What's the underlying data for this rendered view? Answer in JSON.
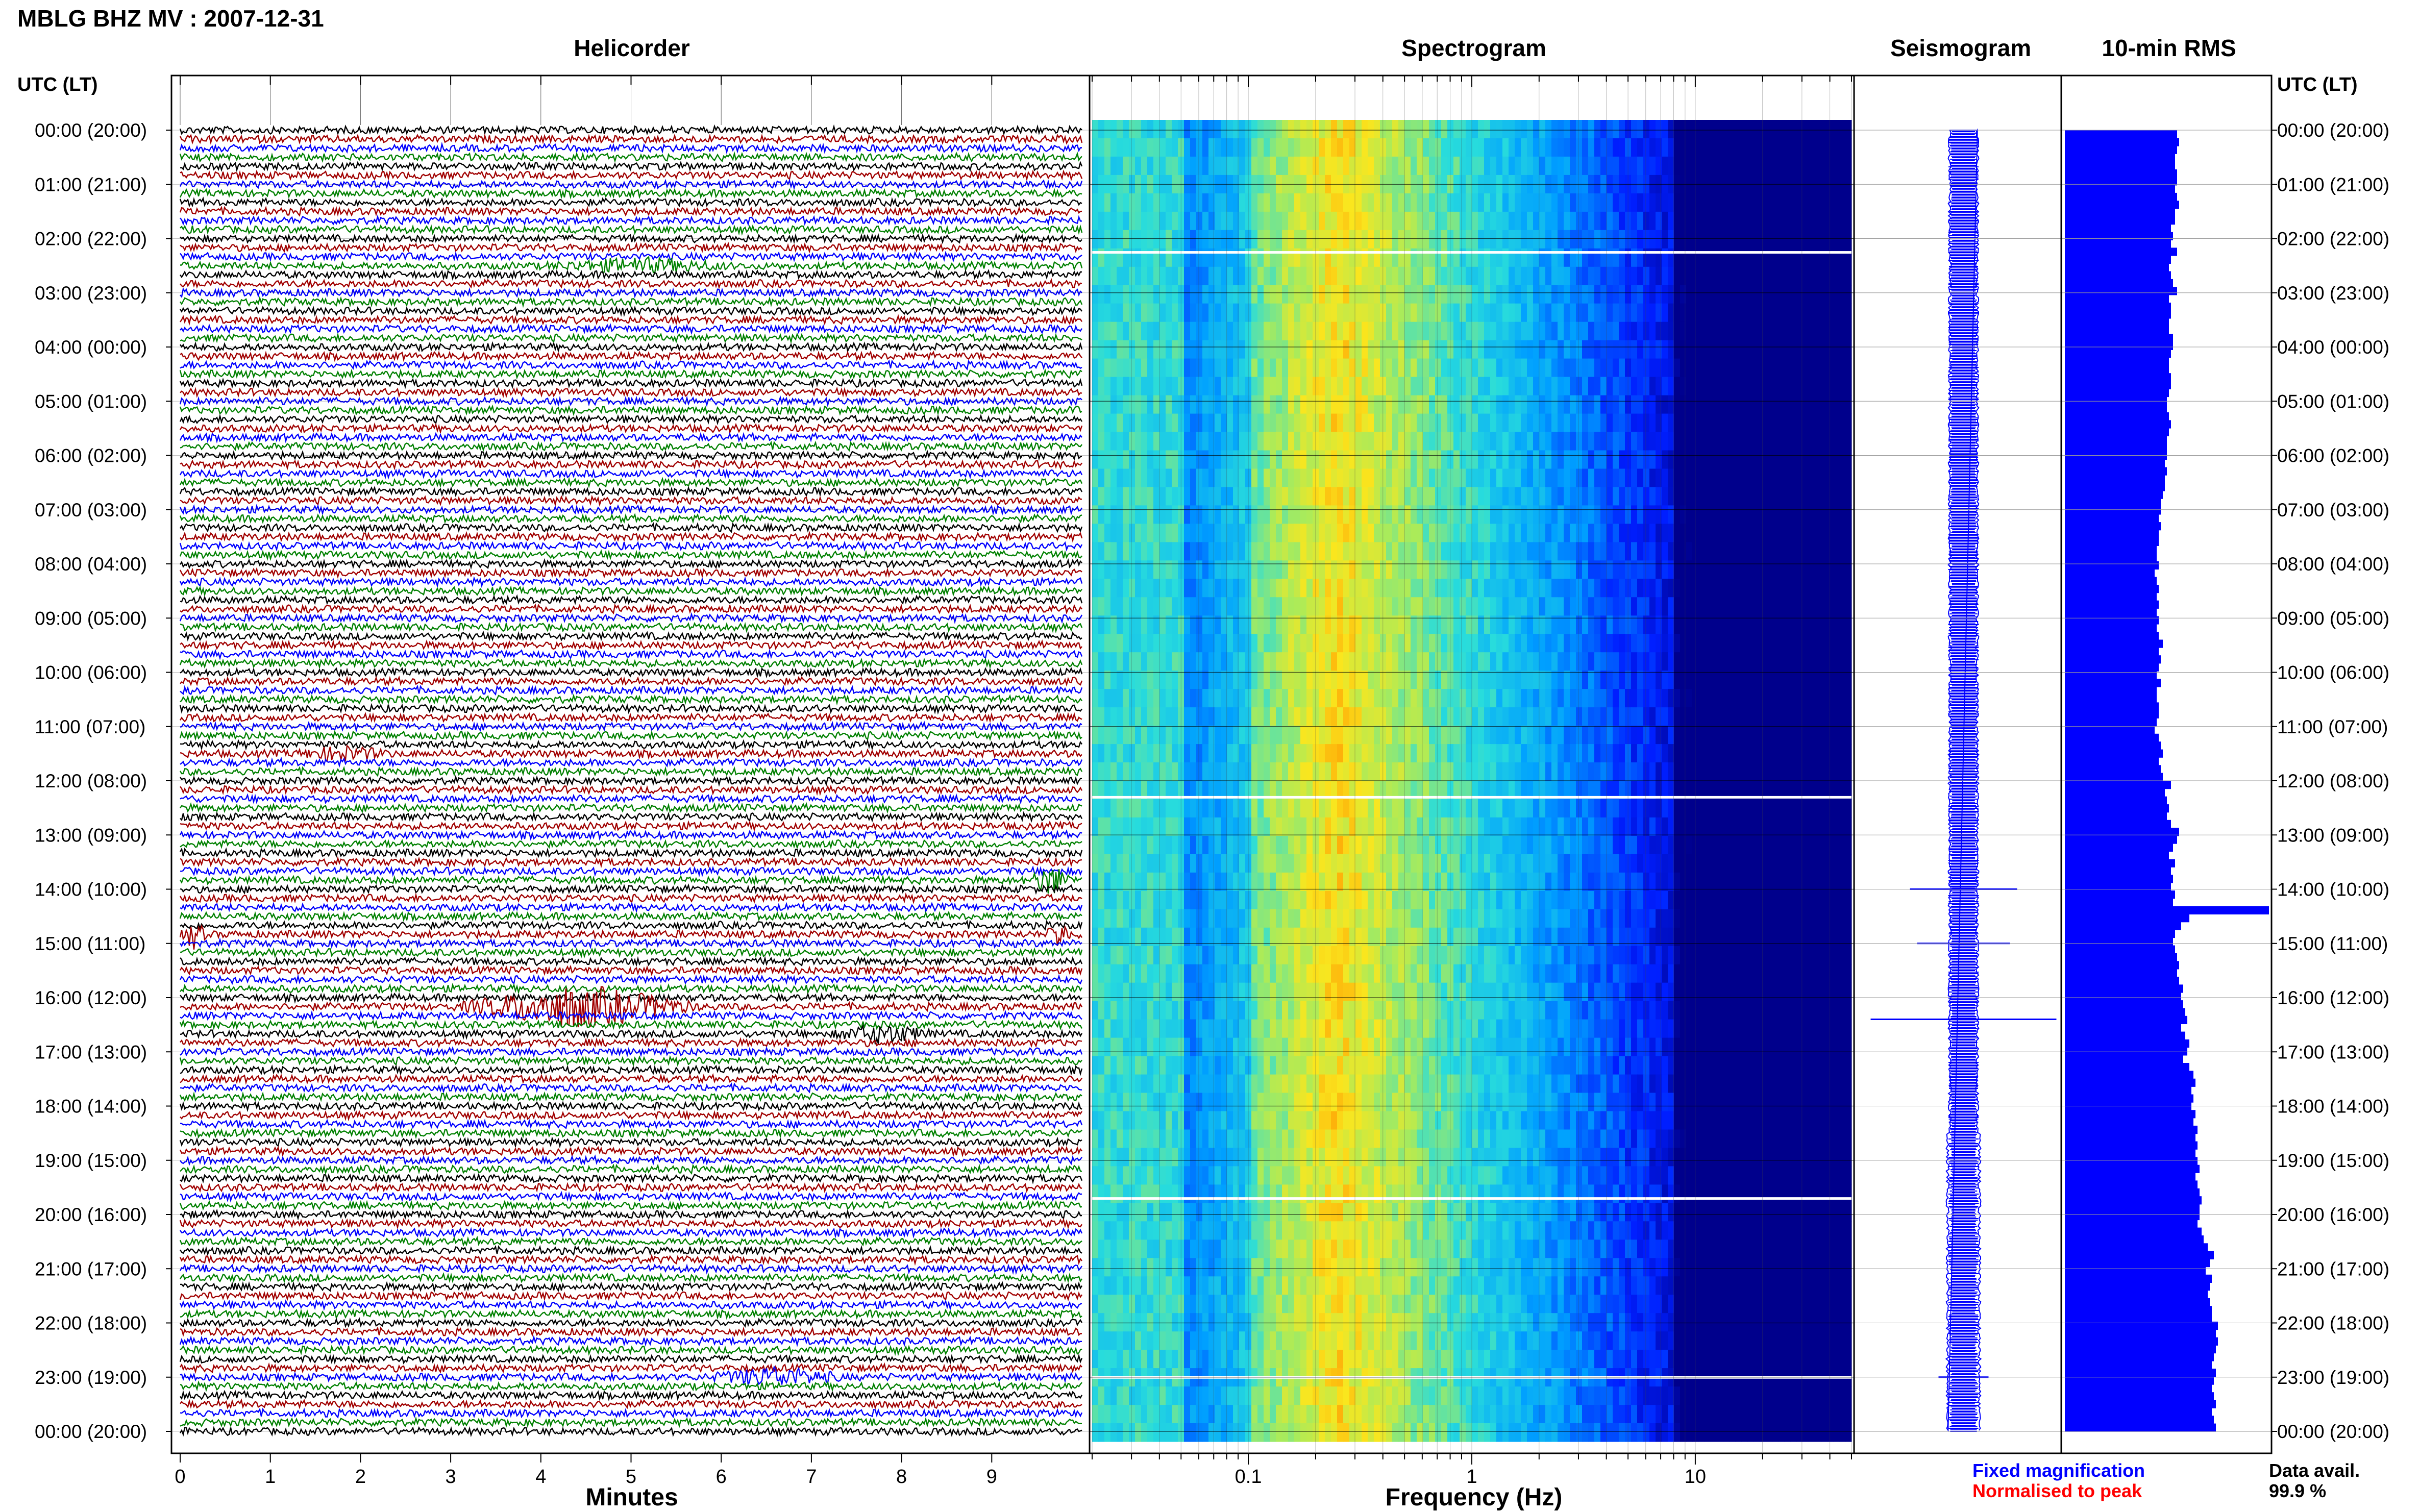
{
  "header": {
    "title": "MBLG BHZ MV : 2007-12-31"
  },
  "panels": {
    "helicorder": "Helicorder",
    "spectrogram": "Spectrogram",
    "seismogram": "Seismogram",
    "rms": "10-min RMS"
  },
  "axes": {
    "time_header_left": "UTC (LT)",
    "time_header_right": "UTC (LT)",
    "helicorder_xlabel": "Minutes",
    "spectrogram_xlabel": "Frequency (Hz)"
  },
  "legend": {
    "fixed": "Fixed magnification",
    "normalised": "Normalised to peak",
    "fixed_color": "#0000ff",
    "normalised_color": "#ff0000"
  },
  "availability": {
    "label": "Data avail.",
    "value": "99.9 %"
  },
  "chart_data": {
    "type": "heatmap",
    "time_labels": [
      "00:00 (20:00)",
      "01:00 (21:00)",
      "02:00 (22:00)",
      "03:00 (23:00)",
      "04:00 (00:00)",
      "05:00 (01:00)",
      "06:00 (02:00)",
      "07:00 (03:00)",
      "08:00 (04:00)",
      "09:00 (05:00)",
      "10:00 (06:00)",
      "11:00 (07:00)",
      "12:00 (08:00)",
      "13:00 (09:00)",
      "14:00 (10:00)",
      "15:00 (11:00)",
      "16:00 (12:00)",
      "17:00 (13:00)",
      "18:00 (14:00)",
      "19:00 (15:00)",
      "20:00 (16:00)",
      "21:00 (17:00)",
      "22:00 (18:00)",
      "23:00 (19:00)",
      "00:00 (20:00)"
    ],
    "helicorder": {
      "x_ticks": [
        0,
        1,
        2,
        3,
        4,
        5,
        6,
        7,
        8,
        9
      ],
      "xlim": [
        0,
        10
      ],
      "trace_colors": [
        "#000000",
        "#a00000",
        "#0000ff",
        "#008000"
      ],
      "traces_per_hour": 6,
      "events": [
        {
          "hour": 2.5,
          "minute_start": 4.0,
          "minute_end": 6.2,
          "color": "#000000",
          "amp": 0.6
        },
        {
          "hour": 11.5,
          "minute_start": 1.2,
          "minute_end": 2.4,
          "color": "#000000",
          "amp": 0.6
        },
        {
          "hour": 13.9,
          "minute_start": 9.4,
          "minute_end": 9.9,
          "color": "#008000",
          "amp": 1.6
        },
        {
          "hour": 14.8,
          "minute_start": 0.0,
          "minute_end": 0.3,
          "color": "#0000ff",
          "amp": 1.4
        },
        {
          "hour": 14.8,
          "minute_start": 9.6,
          "minute_end": 9.9,
          "color": "#a00000",
          "amp": 1.4
        },
        {
          "hour": 16.2,
          "minute_start": 3.0,
          "minute_end": 5.8,
          "color": "#0000ff",
          "amp": 2.2
        },
        {
          "hour": 16.6,
          "minute_start": 7.2,
          "minute_end": 8.4,
          "color": "#000000",
          "amp": 0.9
        },
        {
          "hour": 23.0,
          "minute_start": 5.8,
          "minute_end": 7.4,
          "color": "#a00000",
          "amp": 0.9
        }
      ]
    },
    "spectrogram": {
      "x_scale": "log",
      "xlim": [
        0.02,
        50
      ],
      "x_tick_labels": [
        {
          "v": 0.1,
          "t": "0.1"
        },
        {
          "v": 1,
          "t": "1"
        },
        {
          "v": 10,
          "t": "10"
        }
      ],
      "peak_frequency": 0.25,
      "gap_hours": [
        2.25,
        12.3,
        19.7,
        23.0
      ]
    },
    "seismogram": {
      "events": [
        {
          "hour": 14.0,
          "amp": 1.5
        },
        {
          "hour": 15.0,
          "amp": 1.3
        },
        {
          "hour": 16.4,
          "amp": 2.6
        },
        {
          "hour": 23.0,
          "amp": 0.7
        }
      ]
    },
    "rms": {
      "values": [
        0.55,
        0.56,
        0.55,
        0.54,
        0.54,
        0.55,
        0.55,
        0.54,
        0.55,
        0.56,
        0.54,
        0.54,
        0.52,
        0.53,
        0.52,
        0.55,
        0.52,
        0.51,
        0.52,
        0.53,
        0.55,
        0.51,
        0.52,
        0.52,
        0.51,
        0.51,
        0.53,
        0.53,
        0.52,
        0.51,
        0.51,
        0.52,
        0.52,
        0.51,
        0.5,
        0.5,
        0.51,
        0.52,
        0.51,
        0.5,
        0.5,
        0.5,
        0.49,
        0.5,
        0.49,
        0.49,
        0.48,
        0.47,
        0.47,
        0.46,
        0.47,
        0.46,
        0.46,
        0.45,
        0.45,
        0.46,
        0.44,
        0.45,
        0.46,
        0.45,
        0.46,
        0.45,
        0.46,
        0.45,
        0.46,
        0.48,
        0.46,
        0.47,
        0.46,
        0.45,
        0.47,
        0.45,
        0.45,
        0.46,
        0.46,
        0.45,
        0.44,
        0.46,
        0.47,
        0.48,
        0.46,
        0.47,
        0.48,
        0.52,
        0.49,
        0.5,
        0.51,
        0.5,
        0.52,
        0.56,
        0.55,
        0.53,
        0.51,
        0.54,
        0.52,
        0.53,
        0.52,
        0.54,
        0.53,
        1.0,
        0.61,
        0.57,
        0.54,
        0.53,
        0.54,
        0.55,
        0.56,
        0.55,
        0.56,
        0.58,
        0.57,
        0.58,
        0.59,
        0.6,
        0.57,
        0.59,
        0.61,
        0.6,
        0.58,
        0.61,
        0.63,
        0.64,
        0.62,
        0.63,
        0.62,
        0.64,
        0.63,
        0.65,
        0.64,
        0.65,
        0.64,
        0.65,
        0.66,
        0.64,
        0.65,
        0.66,
        0.67,
        0.66,
        0.66,
        0.65,
        0.67,
        0.68,
        0.7,
        0.73,
        0.71,
        0.69,
        0.72,
        0.71,
        0.7,
        0.71,
        0.72,
        0.72,
        0.75,
        0.74,
        0.75,
        0.74,
        0.73,
        0.72,
        0.74,
        0.73,
        0.72,
        0.73,
        0.74,
        0.72,
        0.73,
        0.74
      ],
      "max_label": ""
    }
  }
}
